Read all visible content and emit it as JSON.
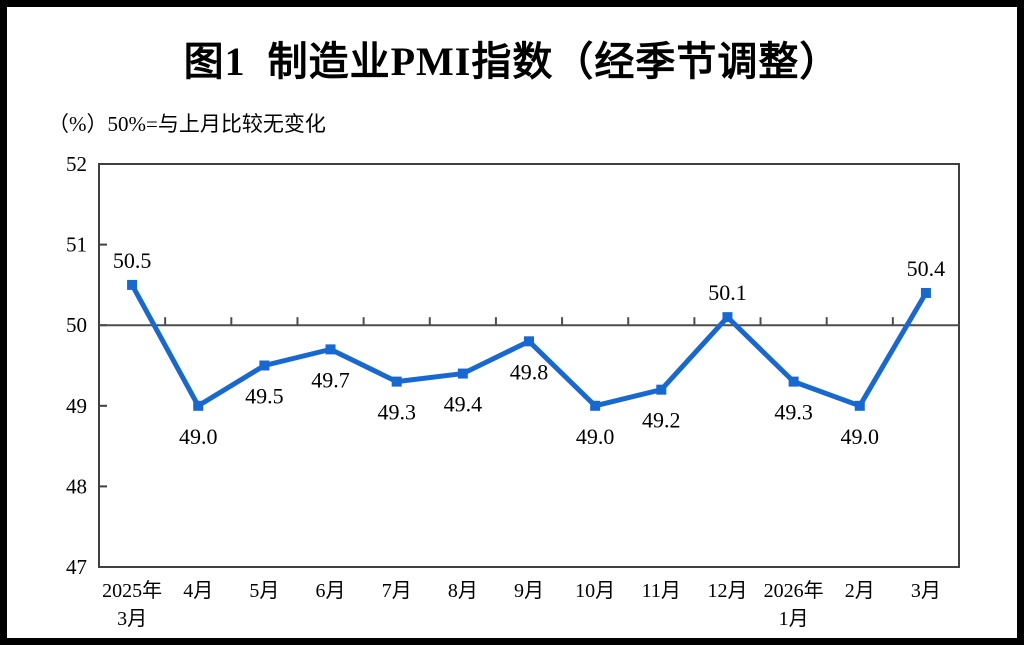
{
  "chart_data": {
    "type": "line",
    "title": "图1  制造业PMI指数（经季节调整）",
    "subtitle": "（%）50%=与上月比较无变化",
    "categories": [
      "2025年\n3月",
      "4月",
      "5月",
      "6月",
      "7月",
      "8月",
      "9月",
      "10月",
      "11月",
      "12月",
      "2026年\n1月",
      "2月",
      "3月"
    ],
    "series": [
      {
        "name": "制造业PMI",
        "values": [
          50.5,
          49.0,
          49.5,
          49.7,
          49.3,
          49.4,
          49.8,
          49.0,
          49.2,
          50.1,
          49.3,
          49.0,
          50.4
        ]
      }
    ],
    "data_labels": [
      "50.5",
      "49.0",
      "49.5",
      "49.7",
      "49.3",
      "49.4",
      "49.8",
      "49.0",
      "49.2",
      "50.1",
      "49.3",
      "49.0",
      "50.4"
    ],
    "ylabel": "",
    "xlabel": "",
    "ylim": [
      47,
      52
    ],
    "yticks": [
      47,
      48,
      49,
      50,
      51,
      52
    ],
    "reference_line": 50,
    "grid": false,
    "legend_position": "none",
    "colors": {
      "line": "#1868d2",
      "marker": "#1868d2",
      "axis": "#404040",
      "reference": "#4d4d4d",
      "text": "#000000",
      "frame": "#000000",
      "background": "#ffffff"
    }
  }
}
